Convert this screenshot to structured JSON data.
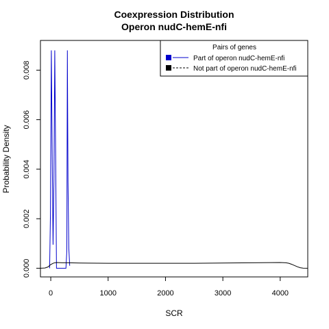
{
  "chart_data": {
    "type": "line",
    "title": "Coexpression Distribution",
    "subtitle": "Operon nudC-hemE-nfi",
    "xlabel": "SCR",
    "ylabel": "Probability Density",
    "xlim": [
      -180,
      4480
    ],
    "ylim": [
      -0.00035,
      0.0092
    ],
    "x_ticks": [
      0,
      1000,
      2000,
      3000,
      4000
    ],
    "x_tick_labels": [
      "0",
      "1000",
      "2000",
      "3000",
      "4000"
    ],
    "y_ticks": [
      0.0,
      0.002,
      0.004,
      0.006,
      0.008
    ],
    "y_tick_labels": [
      "0.000",
      "0.002",
      "0.004",
      "0.006",
      "0.008"
    ],
    "grid": false,
    "legend": {
      "title": "Pairs of genes",
      "position": "top-right",
      "entries": [
        "Part of operon nudC-hemE-nfi",
        "Not part of operon nudC-hemE-nfi"
      ]
    },
    "series": [
      {
        "name": "Part of operon nudC-hemE-nfi",
        "color": "#0000cc",
        "style": "solid",
        "x": [
          -20,
          -5,
          10,
          25,
          40,
          55,
          70,
          85,
          100,
          115,
          130,
          145,
          160,
          175,
          190,
          205,
          220,
          235,
          250,
          265,
          280,
          290,
          300,
          315,
          330
        ],
        "y": [
          0.0,
          0.0022,
          0.0088,
          0.0045,
          0.00095,
          0.0035,
          0.0088,
          0.0045,
          0.0,
          0.0,
          0.0,
          0.0,
          0.0,
          0.0,
          0.0,
          0.0,
          0.0,
          0.0,
          0.0,
          0.0,
          0.0007,
          0.0088,
          0.0035,
          0.0008,
          0.0001
        ]
      },
      {
        "name": "Not part of operon nudC-hemE-nfi",
        "color": "#000000",
        "style": "solid",
        "x": [
          -180,
          -100,
          -50,
          0,
          50,
          100,
          200,
          300,
          500,
          1000,
          1500,
          2000,
          2500,
          3000,
          3500,
          4000,
          4100,
          4150,
          4200,
          4250,
          4300,
          4350,
          4400,
          4480
        ],
        "y": [
          0.0,
          1e-05,
          5e-05,
          0.00015,
          0.00021,
          0.00023,
          0.00022,
          0.00022,
          0.00021,
          0.0002,
          0.0002,
          0.0002,
          0.0002,
          0.00021,
          0.00022,
          0.00023,
          0.00022,
          0.0002,
          0.00016,
          0.00011,
          6e-05,
          2e-05,
          5e-06,
          0.0
        ]
      }
    ]
  }
}
